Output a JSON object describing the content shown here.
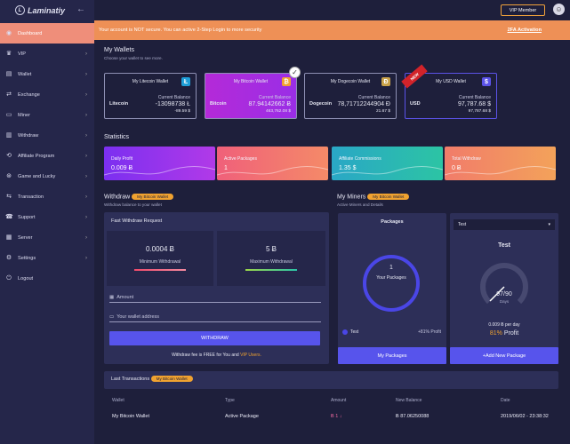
{
  "app": {
    "name": "Laminatiy"
  },
  "sidebar": {
    "items": [
      {
        "label": "Dashboard",
        "icon": "dashboard-icon",
        "glyph": "◉"
      },
      {
        "label": "VIP",
        "icon": "crown-icon",
        "glyph": "♛"
      },
      {
        "label": "Wallet",
        "icon": "wallet-icon",
        "glyph": "▤"
      },
      {
        "label": "Exchange",
        "icon": "exchange-icon",
        "glyph": "⇄"
      },
      {
        "label": "Miner",
        "icon": "miner-icon",
        "glyph": "▭"
      },
      {
        "label": "Withdraw",
        "icon": "withdraw-icon",
        "glyph": "▥"
      },
      {
        "label": "Affiliate Program",
        "icon": "share-icon",
        "glyph": "⟲"
      },
      {
        "label": "Game and Lucky",
        "icon": "gamepad-icon",
        "glyph": "⊛"
      },
      {
        "label": "Transaction",
        "icon": "transaction-icon",
        "glyph": "⇆"
      },
      {
        "label": "Support",
        "icon": "support-icon",
        "glyph": "☎"
      },
      {
        "label": "Server",
        "icon": "server-icon",
        "glyph": "▦"
      },
      {
        "label": "Settings",
        "icon": "gear-icon",
        "glyph": "⚙"
      },
      {
        "label": "Logout",
        "icon": "logout-icon",
        "glyph": "⏻"
      }
    ]
  },
  "topbar": {
    "vip_label": "VIP Member",
    "avatar": "☺"
  },
  "alert": {
    "text": "Your account is NOT secure. You can active 2-Step Login to more security",
    "action": "2FA Activation"
  },
  "wallets": {
    "title": "My Wallets",
    "subtitle": "Choose your wallet to see more.",
    "balance_label": "Current Balance",
    "new_label": "NEW",
    "items": [
      {
        "title": "My Litecoin Wallet",
        "icon": "litecoin-icon",
        "glyph": "Ł",
        "color": "#1f9fd8",
        "coin": "Litecoin",
        "balance": "-13098738 Ł",
        "sub": "-89.59 $"
      },
      {
        "title": "My Bitcoin Wallet",
        "icon": "bitcoin-icon",
        "glyph": "₿",
        "color": "#f0a230",
        "coin": "Bitcoin",
        "balance": "87.94142662 Ƀ",
        "sub": "463,762.08 $"
      },
      {
        "title": "My Dogecoin Wallet",
        "icon": "dogecoin-icon",
        "glyph": "Ð",
        "color": "#c9a24a",
        "coin": "Dogecoin",
        "balance": "78,71712244904 Đ",
        "sub": "21.67 $"
      },
      {
        "title": "My USD Wallet",
        "icon": "dollar-icon",
        "glyph": "$",
        "color": "#5b53e8",
        "coin": "USD",
        "balance": "97,787.68 $",
        "sub": "97,787.68 $"
      }
    ]
  },
  "statistics": {
    "title": "Statistics",
    "items": [
      {
        "label": "Daily Profit",
        "value": "0.009 Ƀ"
      },
      {
        "label": "Active Packages",
        "value": "1"
      },
      {
        "label": "Affiliate Commissions",
        "value": "1.35 $"
      },
      {
        "label": "Total Withdraw",
        "value": "0 Ƀ"
      }
    ]
  },
  "withdraw": {
    "title": "Withdraw",
    "badge": "My Bitcoin Wallet",
    "subtitle": "Withdraw balance to your wallet",
    "request_title": "Fast Withdraw Request",
    "min_value": "0.0004 Ƀ",
    "min_label": "Minimum Withdrawal",
    "max_value": "5 Ƀ",
    "max_label": "Maximum Withdrawal",
    "amount_placeholder": "Amount",
    "address_placeholder": "Your wallet address",
    "button": "WITHDRAW",
    "note_prefix": "Withdraw fee is FREE for You and",
    "note_vip": "VIP Users."
  },
  "miners": {
    "title": "My Miners",
    "badge": "My Bitcoin Wallet",
    "subtitle": "Active Miners and Details",
    "packages_title": "Packages",
    "count": "1",
    "count_label": "Your Packages",
    "legend_label": "Test",
    "legend_profit": "+81% Profit",
    "my_packages_btn": "My Packages",
    "select_value": "Test",
    "package_name": "Test",
    "gauge_value": "97/90",
    "gauge_unit": "Days",
    "per_day": "0.009 Ƀ per day",
    "profit_pct": "81%",
    "profit_label": "Profit",
    "add_btn": "+Add New Package"
  },
  "transactions": {
    "title": "Last Transactions",
    "badge": "My Bitcoin Wallet",
    "headers": [
      "Wallet",
      "Type",
      "Amount",
      "New Balance",
      "Date"
    ],
    "rows": [
      {
        "wallet": "My Bitcoin Wallet",
        "type": "Active Package",
        "amount": "Ƀ 1 ↓",
        "balance": "Ƀ 87.06250088",
        "date": "2019/06/02 - 23:38:32"
      }
    ]
  },
  "colors": {
    "bg": "#1e1f3b",
    "sidebar": "#25264a",
    "accent": "#5754ec",
    "orange": "#f0a230",
    "alert": "#ee9056"
  }
}
